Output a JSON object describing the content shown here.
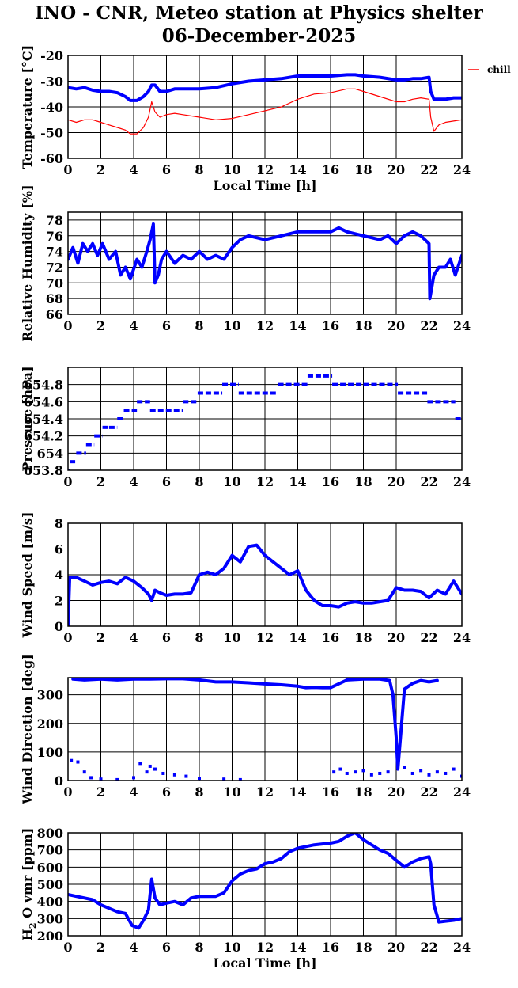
{
  "figure": {
    "title_line1": "INO - CNR, Meteo station at Physics shelter",
    "title_line2": "06-December-2025"
  },
  "colors": {
    "main": "#0000ff",
    "chill": "#ff0000",
    "grid": "#000000"
  },
  "chart_data": [
    {
      "type": "line",
      "ylabel": "Temperature [°C]",
      "xlabel": "Local Time [h]",
      "xlim": [
        0,
        24
      ],
      "ylim": [
        -60,
        -20
      ],
      "yticks": [
        -60,
        -50,
        -40,
        -30,
        -20
      ],
      "xticks": [
        0,
        2,
        4,
        6,
        8,
        10,
        12,
        14,
        16,
        18,
        20,
        22,
        24
      ],
      "legend": {
        "position": "right",
        "entries": [
          "chill"
        ]
      },
      "series": [
        {
          "color": "#0000ff",
          "style": "thick",
          "x": [
            0,
            0.5,
            1,
            1.5,
            2,
            2.5,
            3,
            3.5,
            3.8,
            4.2,
            4.6,
            4.9,
            5.1,
            5.3,
            5.6,
            6,
            6.5,
            7,
            8,
            9,
            10,
            11,
            12,
            13,
            14,
            15,
            16,
            17,
            17.5,
            18,
            19,
            20,
            20.5,
            21,
            21.5,
            22,
            22.1,
            22.3,
            22.6,
            23,
            23.5,
            24
          ],
          "y": [
            -32.5,
            -33,
            -32.5,
            -33.5,
            -34,
            -34,
            -34.5,
            -36,
            -37.5,
            -37.5,
            -36,
            -34,
            -31.5,
            -31.5,
            -34,
            -34,
            -33,
            -33,
            -33,
            -32.5,
            -31,
            -30,
            -29.5,
            -29,
            -28,
            -28,
            -28,
            -27.5,
            -27.5,
            -28,
            -28.5,
            -29.5,
            -29.5,
            -29,
            -29,
            -28.5,
            -34,
            -37,
            -37,
            -37,
            -36.5,
            -36.5
          ]
        },
        {
          "name": "chill",
          "color": "#ff0000",
          "style": "thin",
          "x": [
            0,
            0.5,
            1,
            1.5,
            2,
            2.5,
            3,
            3.5,
            3.8,
            4.2,
            4.6,
            4.9,
            5.1,
            5.3,
            5.6,
            6,
            6.5,
            7,
            8,
            9,
            10,
            11,
            12,
            13,
            14,
            15,
            16,
            17,
            17.5,
            18,
            19,
            20,
            20.5,
            21,
            21.5,
            22,
            22.1,
            22.3,
            22.6,
            23,
            23.5,
            24
          ],
          "y": [
            -45,
            -46,
            -45,
            -45,
            -46,
            -47,
            -48,
            -49,
            -50.5,
            -50.5,
            -48,
            -44,
            -38,
            -42,
            -44,
            -43,
            -42.5,
            -43,
            -44,
            -45,
            -44.5,
            -43,
            -41.5,
            -40,
            -37,
            -35,
            -34.5,
            -33,
            -33,
            -34,
            -36,
            -38,
            -38,
            -37,
            -36.5,
            -37,
            -44,
            -49.5,
            -47,
            -46,
            -45.5,
            -45
          ]
        }
      ]
    },
    {
      "type": "line",
      "ylabel": "Relative Humidity [%]",
      "xlim": [
        0,
        24
      ],
      "ylim": [
        66,
        79
      ],
      "yticks": [
        66,
        68,
        70,
        72,
        74,
        76,
        78
      ],
      "xticks": [
        0,
        2,
        4,
        6,
        8,
        10,
        12,
        14,
        16,
        18,
        20,
        22,
        24
      ],
      "series": [
        {
          "color": "#0000ff",
          "style": "thick",
          "x": [
            0,
            0.3,
            0.6,
            0.9,
            1.2,
            1.5,
            1.8,
            2.1,
            2.5,
            2.9,
            3.2,
            3.5,
            3.8,
            4.2,
            4.5,
            4.8,
            5.0,
            5.2,
            5.3,
            5.5,
            5.7,
            6,
            6.5,
            7,
            7.5,
            8,
            8.5,
            9,
            9.5,
            10,
            10.5,
            11,
            12,
            13,
            14,
            15,
            16,
            16.5,
            17,
            18,
            19,
            19.5,
            20,
            20.5,
            21,
            21.5,
            22,
            22.05,
            22.3,
            22.6,
            23,
            23.3,
            23.6,
            24
          ],
          "y": [
            73,
            74.5,
            72.5,
            75,
            74,
            75,
            73.5,
            75,
            73,
            74,
            71,
            72,
            70.5,
            73,
            72,
            74,
            75.5,
            77.5,
            70,
            71,
            73,
            74,
            72.5,
            73.5,
            73,
            74,
            73,
            73.5,
            73,
            74.5,
            75.5,
            76,
            75.5,
            76,
            76.5,
            76.5,
            76.5,
            77,
            76.5,
            76,
            75.5,
            76,
            75,
            76,
            76.5,
            76,
            75,
            68,
            71,
            72,
            72,
            73,
            71,
            73.5
          ]
        }
      ]
    },
    {
      "type": "scatter",
      "ylabel": "Pressure [hPa]",
      "xlim": [
        0,
        24
      ],
      "ylim": [
        653.8,
        655.0
      ],
      "yticks": [
        653.8,
        654,
        654.2,
        654.4,
        654.6,
        654.8
      ],
      "ytick_labels": [
        "653.8",
        "654",
        "654.2",
        "654.4",
        "654.6",
        "654.8"
      ],
      "xticks": [
        0,
        2,
        4,
        6,
        8,
        10,
        12,
        14,
        16,
        18,
        20,
        22,
        24
      ],
      "series": [
        {
          "color": "#0000ff",
          "style": "steps",
          "x": [
            0,
            0.1,
            0.5,
            1.1,
            1.6,
            2.1,
            2.5,
            3.0,
            3.4,
            4.2,
            5.0,
            7.0,
            7.9,
            9.4,
            10.4,
            12.8,
            14.6,
            16.1,
            18.0,
            20.1,
            21.9,
            23.6,
            24
          ],
          "y": [
            653.8,
            653.9,
            654.0,
            654.1,
            654.2,
            654.3,
            654.3,
            654.4,
            654.5,
            654.6,
            654.5,
            654.6,
            654.7,
            654.8,
            654.7,
            654.8,
            654.9,
            654.8,
            654.8,
            654.7,
            654.6,
            654.4,
            654.4
          ]
        }
      ]
    },
    {
      "type": "scatter",
      "ylabel": "Wind Speed [m/s]",
      "xlim": [
        0,
        24
      ],
      "ylim": [
        0,
        8
      ],
      "yticks": [
        0,
        2,
        4,
        6,
        8
      ],
      "xticks": [
        0,
        2,
        4,
        6,
        8,
        10,
        12,
        14,
        16,
        18,
        20,
        22,
        24
      ],
      "series": [
        {
          "color": "#0000ff",
          "style": "thick",
          "x": [
            0,
            0.1,
            0.5,
            1,
            1.5,
            2,
            2.5,
            3,
            3.5,
            4,
            4.5,
            4.9,
            5.1,
            5.3,
            5.6,
            6,
            6.5,
            7,
            7.5,
            8,
            8.5,
            9,
            9.5,
            10,
            10.5,
            11,
            11.5,
            12,
            12.5,
            13,
            13.5,
            14,
            14.5,
            15,
            15.5,
            16,
            16.5,
            17,
            17.5,
            18,
            18.5,
            19,
            19.5,
            20,
            20.5,
            21,
            21.5,
            22,
            22.5,
            23,
            23.5,
            24
          ],
          "y": [
            0,
            3.8,
            3.8,
            3.5,
            3.2,
            3.4,
            3.5,
            3.3,
            3.8,
            3.5,
            3.0,
            2.5,
            2.0,
            2.8,
            2.6,
            2.4,
            2.5,
            2.5,
            2.6,
            4.0,
            4.2,
            4.0,
            4.5,
            5.5,
            5.0,
            6.2,
            6.3,
            5.5,
            5.0,
            4.5,
            4.0,
            4.3,
            2.8,
            2.0,
            1.6,
            1.6,
            1.5,
            1.8,
            1.9,
            1.8,
            1.8,
            1.9,
            2.0,
            3.0,
            2.8,
            2.8,
            2.7,
            2.2,
            2.8,
            2.5,
            3.5,
            2.5
          ]
        }
      ]
    },
    {
      "type": "scatter",
      "ylabel": "Wind Direction [deg]",
      "xlim": [
        0,
        24
      ],
      "ylim": [
        0,
        360
      ],
      "yticks": [
        0,
        100,
        200,
        300
      ],
      "xticks": [
        0,
        2,
        4,
        6,
        8,
        10,
        12,
        14,
        16,
        18,
        20,
        22,
        24
      ],
      "series": [
        {
          "color": "#0000ff",
          "style": "points",
          "x": [
            0.2,
            0.6,
            1.0,
            1.4,
            2.0,
            3.0,
            4.0,
            4.4,
            4.8,
            5.0,
            5.3,
            5.8,
            6.5,
            7.2,
            8.0,
            9.5,
            10.5,
            16.2,
            16.6,
            17.0,
            17.5,
            18.0,
            18.5,
            19.0,
            19.5,
            20.5,
            21.0,
            21.5,
            22.0,
            22.5,
            23.0,
            23.5,
            24.0
          ],
          "y": [
            70,
            65,
            30,
            10,
            5,
            3,
            10,
            60,
            30,
            50,
            40,
            25,
            20,
            15,
            8,
            5,
            3,
            30,
            40,
            25,
            30,
            35,
            20,
            25,
            30,
            45,
            25,
            35,
            20,
            30,
            25,
            40,
            15
          ]
        },
        {
          "color": "#0000ff",
          "style": "thick",
          "x": [
            0.3,
            1.0,
            2.0,
            3.0,
            4.0,
            5.0,
            6.0,
            7.0,
            8.0,
            9.0,
            10.0,
            11.0,
            12.0,
            13.0,
            14.0,
            14.5,
            15.0,
            15.5,
            16.0,
            17.0,
            18.0,
            19.0,
            19.6,
            19.8,
            20.0,
            20.1,
            20.5,
            21.0,
            21.5,
            22.0,
            22.5
          ],
          "y": [
            355,
            352,
            355,
            352,
            355,
            355,
            356,
            356,
            352,
            345,
            345,
            342,
            338,
            335,
            330,
            325,
            326,
            325,
            325,
            352,
            355,
            355,
            350,
            300,
            150,
            40,
            320,
            340,
            350,
            345,
            350
          ]
        }
      ]
    },
    {
      "type": "line",
      "ylabel": "H2O vmr [ppm]",
      "ylabel_main": "H",
      "ylabel_sub": "2",
      "ylabel_rest": "O vmr [ppm]",
      "xlabel": "Local Time [h]",
      "xlim": [
        0,
        24
      ],
      "ylim": [
        200,
        800
      ],
      "yticks": [
        200,
        300,
        400,
        500,
        600,
        700,
        800
      ],
      "xticks": [
        0,
        2,
        4,
        6,
        8,
        10,
        12,
        14,
        16,
        18,
        20,
        22,
        24
      ],
      "series": [
        {
          "color": "#0000ff",
          "style": "thick",
          "x": [
            0,
            0.5,
            1,
            1.5,
            2,
            2.5,
            3,
            3.5,
            3.9,
            4.3,
            4.6,
            4.9,
            5.1,
            5.3,
            5.6,
            6,
            6.5,
            7,
            7.5,
            8,
            8.5,
            9,
            9.5,
            10,
            10.5,
            11,
            11.5,
            12,
            12.5,
            13,
            13.5,
            14,
            14.5,
            15,
            15.5,
            16,
            16.5,
            17,
            17.5,
            18,
            18.5,
            19,
            19.5,
            20,
            20.5,
            21,
            21.5,
            22,
            22.1,
            22.3,
            22.6,
            23,
            23.5,
            24
          ],
          "y": [
            440,
            430,
            420,
            410,
            380,
            360,
            340,
            330,
            260,
            245,
            290,
            350,
            530,
            420,
            380,
            390,
            400,
            380,
            420,
            430,
            430,
            430,
            450,
            520,
            560,
            580,
            590,
            620,
            630,
            650,
            690,
            710,
            720,
            730,
            735,
            740,
            750,
            780,
            800,
            760,
            730,
            700,
            680,
            640,
            600,
            630,
            650,
            660,
            620,
            380,
            280,
            285,
            290,
            300
          ]
        }
      ]
    }
  ]
}
